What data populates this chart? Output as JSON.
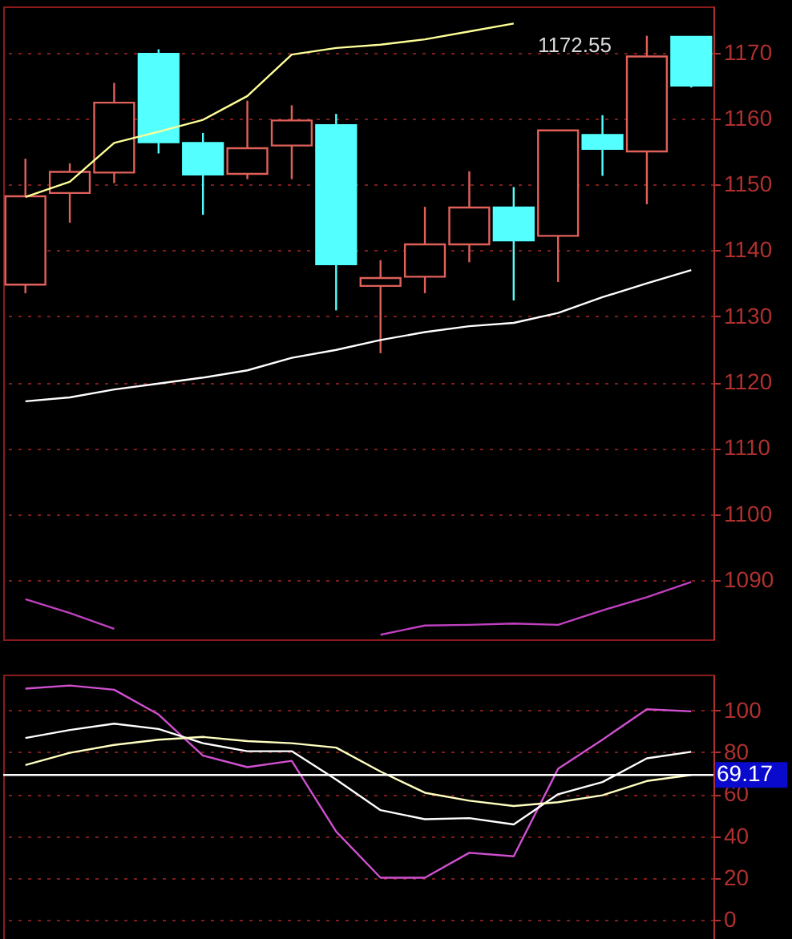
{
  "chart_data": [
    {
      "type": "candlestick",
      "categories": [
        null,
        null,
        null,
        null,
        null,
        null,
        null,
        null,
        null,
        null,
        null,
        null,
        null,
        null,
        null,
        null
      ],
      "ohlc": [
        [
          1134.8,
          1153.9,
          1133.5,
          1148.2
        ],
        [
          1148.7,
          1153.2,
          1144.2,
          1151.9
        ],
        [
          1151.8,
          1165.4,
          1150.2,
          1162.4
        ],
        [
          1169.8,
          1170.5,
          1154.7,
          1156.4
        ],
        [
          1156.3,
          1157.8,
          1145.4,
          1151.5
        ],
        [
          1151.6,
          1162.7,
          1150.8,
          1155.5
        ],
        [
          1155.9,
          1162,
          1150.8,
          1159.7
        ],
        [
          1159,
          1160.7,
          1130.9,
          1137.9
        ],
        [
          1134.6,
          1138.5,
          1124.4,
          1135.8
        ],
        [
          1136,
          1146.6,
          1133.5,
          1140.9
        ],
        [
          1140.9,
          1152,
          1138.2,
          1146.5
        ],
        [
          1146.5,
          1149.6,
          1132.4,
          1141.5
        ],
        [
          1142.2,
          1158.2,
          1135.2,
          1158.2
        ],
        [
          1157.5,
          1160.5,
          1151.3,
          1155.4
        ],
        [
          1155,
          1172.55,
          1147,
          1169.4
        ],
        [
          1172.4,
          1172.4,
          1164.7,
          1165
        ]
      ],
      "colors": [
        "#e0605a",
        "#e0605a",
        "#e0605a",
        "#54ffff",
        "#54ffff",
        "#e0605a",
        "#e0605a",
        "#54ffff",
        "#e0605a",
        "#e0605a",
        "#e0605a",
        "#54ffff",
        "#e0605a",
        "#54ffff",
        "#e0605a",
        "#54ffff"
      ],
      "series": [
        {
          "type": "line",
          "color": "#ffff99",
          "values": [
            1148.1,
            1150.4,
            1156.3,
            1158,
            1159.8,
            1163.4,
            1169.7,
            1170.7,
            1171.2,
            1172,
            1173.2,
            1174.4,
            null,
            null,
            null,
            null
          ]
        },
        {
          "type": "line",
          "color": "#ffffff",
          "values": [
            1117.1,
            1117.7,
            1118.9,
            1119.8,
            1120.7,
            1121.8,
            1123.7,
            1124.9,
            1126.4,
            1127.6,
            1128.5,
            1129,
            1130.5,
            1132.9,
            1135,
            1137
          ]
        },
        {
          "type": "line",
          "color": "#c040c0",
          "values": [
            1087.1,
            1085,
            1082.6,
            null,
            null,
            null,
            null,
            null,
            1081.7,
            1083.1,
            1083.2,
            1083.4,
            1083.2,
            1085.4,
            1087.4,
            1089.7
          ]
        }
      ],
      "ylim": [
        1081,
        1177
      ],
      "yticks": [
        1090,
        1100,
        1110,
        1120,
        1130,
        1140,
        1150,
        1160,
        1170
      ],
      "grid": "y",
      "tick_labels": "y",
      "annotations": [
        "1172.55"
      ]
    },
    {
      "type": "line",
      "categories": [
        null,
        null,
        null,
        null,
        null,
        null,
        null,
        null,
        null,
        null,
        null,
        null,
        null,
        null,
        null,
        null
      ],
      "series": [
        {
          "color": "#d050d0",
          "values": [
            110.3,
            111.8,
            109.8,
            98,
            78.4,
            72.9,
            75.9,
            42.2,
            20.2,
            20.2,
            32.1,
            30.4,
            72.1,
            86,
            100.5,
            99.5
          ]
        },
        {
          "color": "#ffffff",
          "values": [
            86.8,
            90.6,
            93.6,
            91.1,
            84.3,
            80.5,
            80.5,
            67,
            52.4,
            48.1,
            48.6,
            45.6,
            60,
            65.8,
            77.1,
            80.2
          ]
        },
        {
          "color": "#ffffc0",
          "values": [
            73.9,
            79.7,
            83.5,
            86,
            87.3,
            85.3,
            84.3,
            82.2,
            70.8,
            60.7,
            56.9,
            54.4,
            56.2,
            59.5,
            66.3,
            69.2
          ]
        }
      ],
      "ylim": [
        -9,
        117
      ],
      "yticks": [
        0,
        20,
        40,
        60,
        80,
        100
      ],
      "grid": "y",
      "tick_labels": "y",
      "ref_lines": [
        {
          "axis": "y",
          "value": 69.17,
          "label": "69.17",
          "color": "#ffffff"
        }
      ]
    }
  ]
}
